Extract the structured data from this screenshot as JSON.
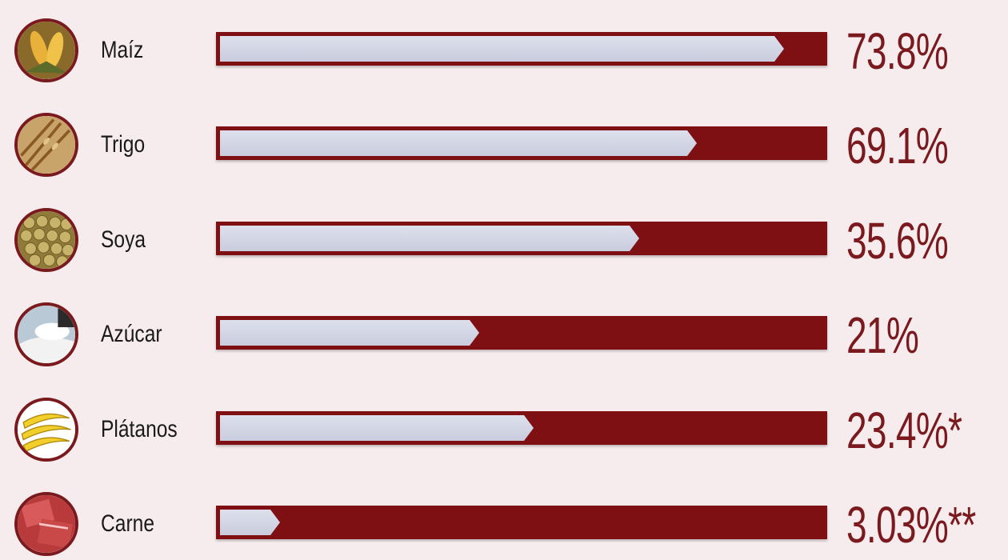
{
  "chart_data": {
    "type": "bar",
    "orientation": "horizontal",
    "categories": [
      "Maíz",
      "Trigo",
      "Soya",
      "Azúcar",
      "Plátanos",
      "Carne"
    ],
    "values": [
      73.8,
      69.1,
      35.6,
      21,
      23.4,
      3.03
    ],
    "value_labels": [
      "73.8%",
      "69.1%",
      "35.6%",
      "21%",
      "23.4%*",
      "3.03%**"
    ],
    "bar_fill_fraction": [
      0.935,
      0.79,
      0.695,
      0.43,
      0.52,
      0.1
    ],
    "icons": [
      "corn-icon",
      "wheat-icon",
      "soybean-icon",
      "sugar-icon",
      "banana-icon",
      "meat-icon"
    ],
    "colors": {
      "background": "#f6eced",
      "bar_track": "#7e1014",
      "bar_fill": "#d3d6e4",
      "value_text": "#7a1a1e",
      "icon_border": "#7a1a1e"
    },
    "grid": false,
    "legend": "none"
  }
}
